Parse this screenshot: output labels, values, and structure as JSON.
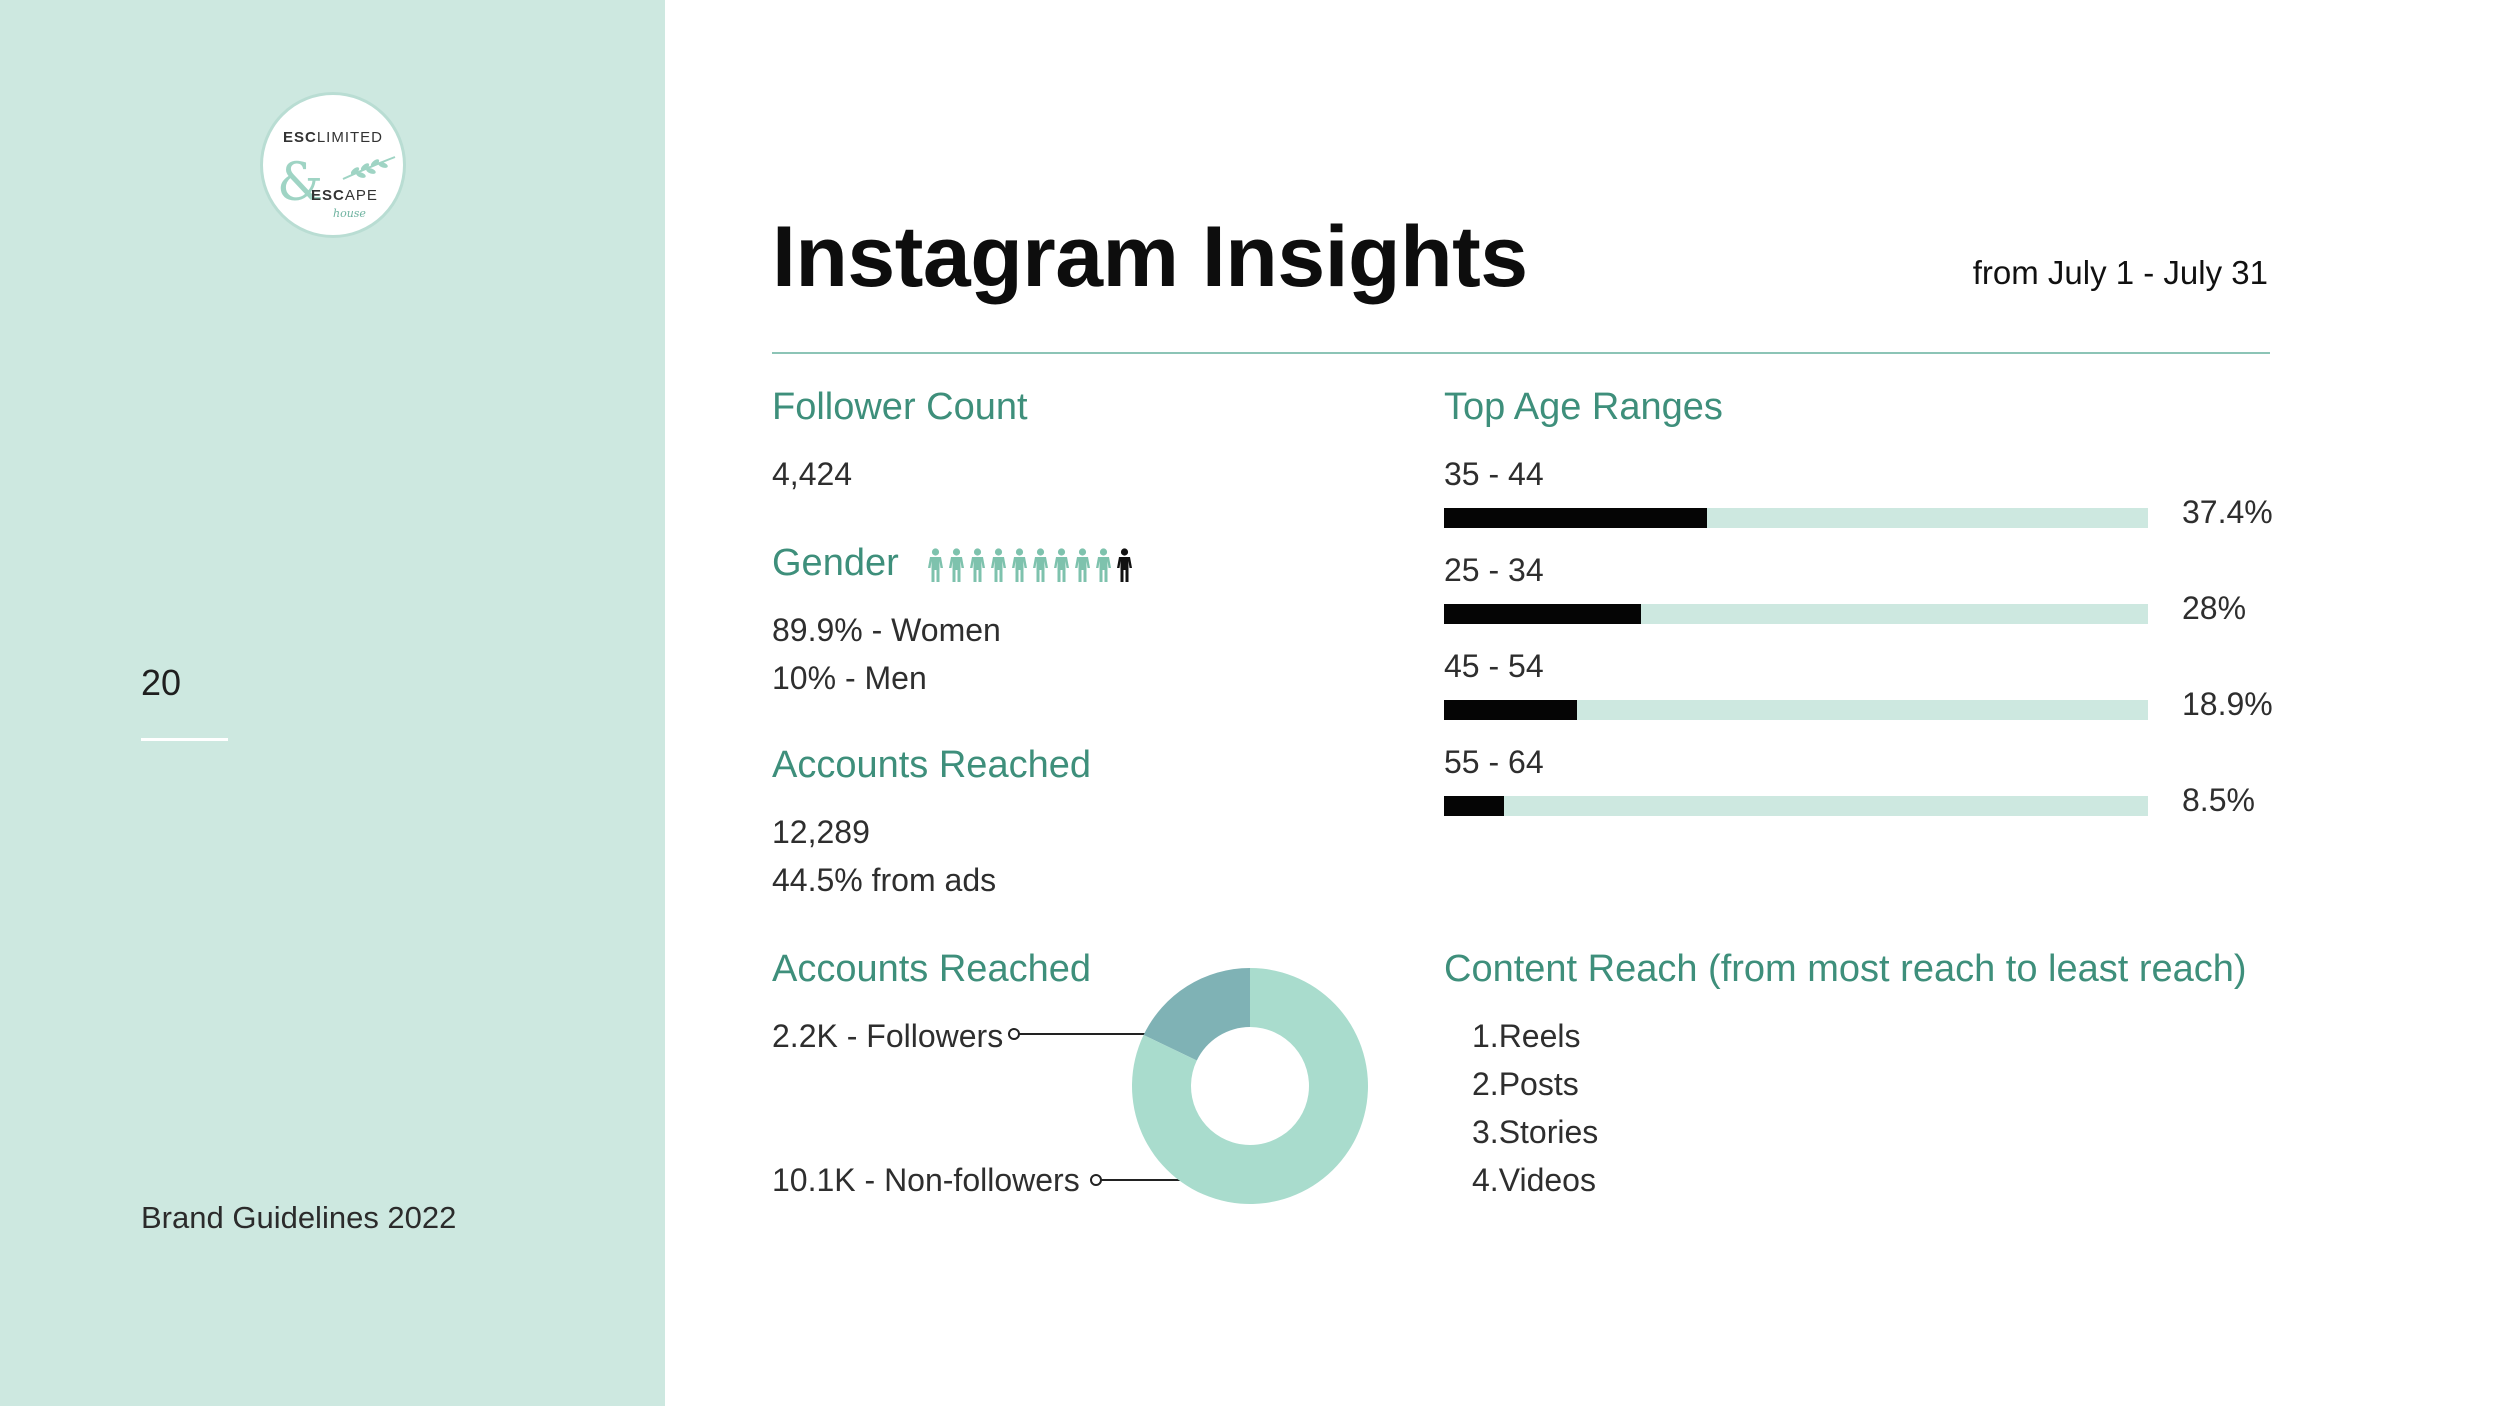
{
  "sidebar": {
    "logo": {
      "top_bold": "ESC",
      "top_light": "LIMITED",
      "bottom_bold": "ESC",
      "bottom_light": "APE",
      "script": "house"
    },
    "page_number": "20",
    "footer": "Brand Guidelines 2022"
  },
  "header": {
    "title": "Instagram Insights",
    "date_range": "from July 1 - July 31"
  },
  "follower_count": {
    "heading": "Follower Count",
    "value": "4,424"
  },
  "gender": {
    "heading": "Gender",
    "women": "89.9% - Women",
    "men": "10% - Men",
    "icons": {
      "women_count": 9,
      "men_count": 1,
      "women_color": "#7ec2ad",
      "men_color": "#111111"
    }
  },
  "accounts_reached": {
    "heading": "Accounts Reached",
    "value": "12,289",
    "ads": "44.5% from ads"
  },
  "accounts_breakdown": {
    "heading": "Accounts Reached",
    "followers_label": "2.2K - Followers",
    "nonfollowers_label": "10.1K - Non-followers"
  },
  "age_ranges": {
    "heading": "Top Age Ranges",
    "items": [
      {
        "label": "35 - 44",
        "value_text": "37.4%"
      },
      {
        "label": "25 - 34",
        "value_text": "28%"
      },
      {
        "label": "45 - 54",
        "value_text": "18.9%"
      },
      {
        "label": "55 - 64",
        "value_text": "8.5%"
      }
    ]
  },
  "content_reach": {
    "heading": "Content Reach (from most reach to least reach)",
    "items": [
      "1.Reels",
      "2.Posts",
      "3.Stories",
      "4.Videos"
    ]
  },
  "colors": {
    "accent": "#3e8f7b",
    "sidebar_bg": "#cde8e0",
    "bar_track": "#cde8e0",
    "bar_fill": "#050505",
    "donut_followers": "#7fb2b5",
    "donut_nonfollowers": "#a9dccd"
  },
  "chart_data": [
    {
      "type": "bar",
      "categories": [
        "35 - 44",
        "25 - 34",
        "45 - 54",
        "55 - 64"
      ],
      "values": [
        37.4,
        28,
        18.9,
        8.5
      ],
      "title": "Top Age Ranges",
      "xlabel": "",
      "ylabel": "",
      "ylim": [
        0,
        100
      ],
      "orientation": "horizontal"
    },
    {
      "type": "pie",
      "categories": [
        "2.2K - Followers",
        "10.1K - Non-followers"
      ],
      "values": [
        2.2,
        10.1
      ],
      "title": "Accounts Reached",
      "donut": true
    }
  ]
}
